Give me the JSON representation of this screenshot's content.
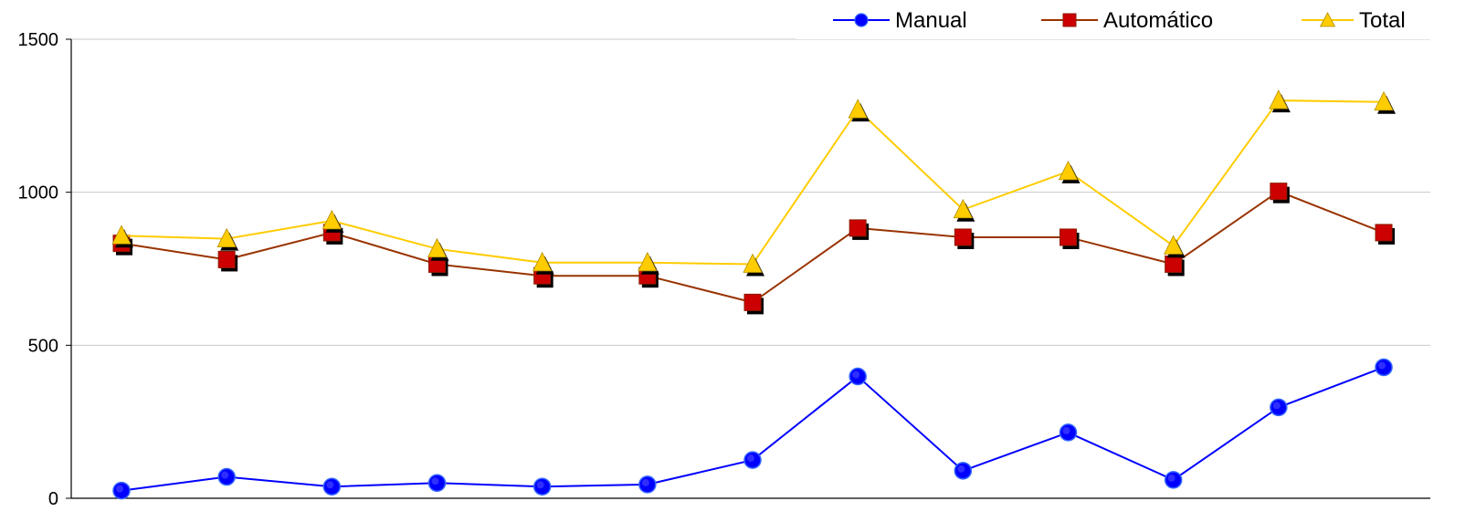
{
  "chart_data": {
    "type": "line",
    "title": "",
    "xlabel": "",
    "ylabel": "",
    "ylim": [
      0,
      1500
    ],
    "yticks": [
      0,
      500,
      1000,
      1500
    ],
    "grid": "horizontal",
    "legend_position": "top-right",
    "x": [
      1,
      2,
      3,
      4,
      5,
      6,
      7,
      8,
      9,
      10,
      11,
      12,
      13
    ],
    "series": [
      {
        "name": "Manual",
        "color": "#0000FF",
        "marker": "circle",
        "values": [
          25,
          70,
          38,
          50,
          38,
          45,
          125,
          398,
          90,
          215,
          60,
          297,
          428
        ]
      },
      {
        "name": "Automático",
        "color": "#993300",
        "marker_fill": "#CC0000",
        "marker": "square",
        "values": [
          833,
          780,
          868,
          765,
          727,
          727,
          640,
          883,
          853,
          853,
          765,
          1003,
          868
        ]
      },
      {
        "name": "Total",
        "color": "#FFCC00",
        "marker": "triangle",
        "values": [
          858,
          848,
          907,
          815,
          770,
          770,
          765,
          1270,
          943,
          1068,
          825,
          1300,
          1295
        ]
      }
    ]
  }
}
